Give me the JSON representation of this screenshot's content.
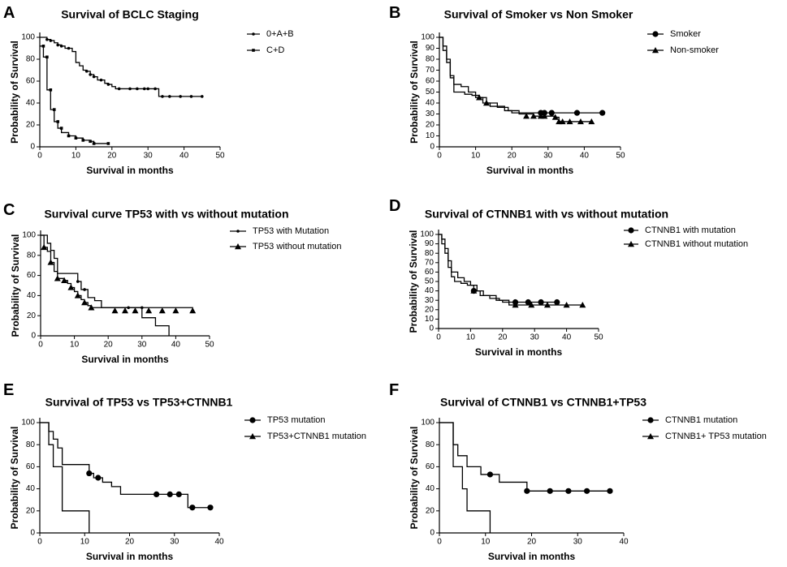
{
  "figure": {
    "panels": [
      {
        "letter": "A",
        "title": "Survival of BCLC Staging"
      },
      {
        "letter": "B",
        "title": "Survival of Smoker vs Non Smoker"
      },
      {
        "letter": "C",
        "title": "Survival curve TP53 with vs without mutation"
      },
      {
        "letter": "D",
        "title": "Survival of CTNNB1 with vs without mutation"
      },
      {
        "letter": "E",
        "title": "Survival of TP53 vs TP53+CTNNB1"
      },
      {
        "letter": "F",
        "title": "Survival of CTNNB1 vs CTNNB1+TP53"
      }
    ]
  },
  "chart_data": [
    {
      "type": "line",
      "step": true,
      "title": "Survival of BCLC Staging",
      "xlabel": "Survival in months",
      "ylabel": "Probability of Survival",
      "xlim": [
        0,
        50
      ],
      "ylim": [
        0,
        100
      ],
      "xticks": [
        0,
        10,
        20,
        30,
        40,
        50
      ],
      "yticks": [
        0,
        20,
        40,
        60,
        80,
        100
      ],
      "legend_position": "top-right",
      "series": [
        {
          "name": "0+A+B",
          "marker": "small-dot",
          "x": [
            0,
            2,
            3,
            4,
            5,
            6,
            7,
            9,
            10,
            11,
            12,
            13,
            14,
            15,
            16,
            18,
            19,
            20,
            21,
            33,
            45
          ],
          "y": [
            100,
            98,
            97,
            95,
            93,
            92,
            90,
            87,
            77,
            74,
            70,
            69,
            66,
            64,
            61,
            58,
            57,
            55,
            53,
            46,
            46
          ],
          "censored_x": [
            2,
            3,
            5,
            6,
            8,
            13,
            14,
            15,
            17,
            19,
            22,
            25,
            27,
            29,
            30,
            32,
            34,
            36,
            39,
            42,
            45
          ],
          "censored_y": [
            98,
            97,
            93,
            92,
            90,
            69,
            66,
            64,
            61,
            57,
            53,
            53,
            53,
            53,
            53,
            53,
            46,
            46,
            46,
            46,
            46
          ]
        },
        {
          "name": "C+D",
          "marker": "small-square",
          "x": [
            0,
            1,
            2,
            3,
            4,
            5,
            6,
            8,
            10,
            12,
            14,
            15,
            19
          ],
          "y": [
            92,
            82,
            52,
            34,
            23,
            17,
            13,
            10,
            8,
            6,
            5,
            3,
            3
          ],
          "censored_x": [
            1,
            2,
            3,
            4,
            5,
            6,
            8,
            10,
            12,
            14,
            15,
            19
          ],
          "censored_y": [
            92,
            82,
            52,
            34,
            23,
            17,
            10,
            8,
            6,
            5,
            3,
            3
          ]
        }
      ]
    },
    {
      "type": "line",
      "step": true,
      "title": "Survival of Smoker vs Non Smoker",
      "xlabel": "Survival in months",
      "ylabel": "Probability of Survival",
      "xlim": [
        0,
        50
      ],
      "ylim": [
        0,
        100
      ],
      "xticks": [
        0,
        10,
        20,
        30,
        40,
        50
      ],
      "yticks": [
        0,
        10,
        20,
        30,
        40,
        50,
        60,
        70,
        80,
        90,
        100
      ],
      "legend_position": "top-right",
      "series": [
        {
          "name": "Smoker",
          "marker": "circle",
          "x": [
            0,
            1,
            2,
            3,
            4,
            6,
            8,
            10,
            12,
            14,
            18,
            20,
            45
          ],
          "y": [
            100,
            92,
            80,
            65,
            57,
            55,
            50,
            45,
            40,
            37,
            33,
            31,
            31
          ],
          "censored_x": [
            28,
            29,
            31,
            38,
            45
          ],
          "censored_y": [
            31,
            31,
            31,
            31,
            31
          ]
        },
        {
          "name": "Non-smoker",
          "marker": "triangle",
          "x": [
            0,
            1,
            2,
            3,
            4,
            7,
            9,
            11,
            13,
            16,
            19,
            22,
            26,
            32,
            33,
            42
          ],
          "y": [
            100,
            88,
            77,
            63,
            50,
            48,
            47,
            45,
            40,
            36,
            33,
            30,
            28,
            27,
            23,
            23
          ],
          "censored_x": [
            11,
            13,
            24,
            26,
            28,
            29,
            32,
            33,
            34,
            36,
            39,
            42
          ],
          "censored_y": [
            45,
            40,
            28,
            28,
            28,
            28,
            27,
            23,
            23,
            23,
            23,
            23
          ]
        }
      ]
    },
    {
      "type": "line",
      "step": true,
      "title": "Survival curve TP53 with vs without mutation",
      "xlabel": "Survival in months",
      "ylabel": "Probability of Survival",
      "xlim": [
        0,
        50
      ],
      "ylim": [
        0,
        100
      ],
      "xticks": [
        0,
        10,
        20,
        30,
        40,
        50
      ],
      "yticks": [
        0,
        20,
        40,
        60,
        80,
        100
      ],
      "legend_position": "top-right",
      "series": [
        {
          "name": "TP53 with Mutation",
          "marker": "small-dot",
          "x": [
            0,
            2,
            3,
            4,
            5,
            11,
            12,
            14,
            16,
            18,
            30,
            34,
            38
          ],
          "y": [
            100,
            92,
            85,
            77,
            62,
            54,
            46,
            38,
            35,
            28,
            18,
            10,
            0
          ],
          "censored_x": [
            11,
            13,
            26,
            30
          ],
          "censored_y": [
            54,
            46,
            28,
            28
          ]
        },
        {
          "name": "TP53 without mutation",
          "marker": "triangle",
          "x": [
            0,
            1,
            2,
            3,
            4,
            5,
            7,
            8,
            9,
            10,
            11,
            12,
            13,
            14,
            15,
            45
          ],
          "y": [
            100,
            88,
            84,
            73,
            64,
            57,
            55,
            52,
            48,
            44,
            40,
            36,
            33,
            30,
            28,
            25
          ],
          "censored_x": [
            1,
            3,
            5,
            7,
            9,
            11,
            13,
            15,
            22,
            25,
            28,
            32,
            36,
            40,
            45
          ],
          "censored_y": [
            88,
            73,
            57,
            55,
            48,
            40,
            33,
            28,
            25,
            25,
            25,
            25,
            25,
            25,
            25
          ]
        }
      ]
    },
    {
      "type": "line",
      "step": true,
      "title": "Survival of CTNNB1 with vs without mutation",
      "xlabel": "Survival in months",
      "ylabel": "Probability of Survival",
      "xlim": [
        0,
        50
      ],
      "ylim": [
        0,
        100
      ],
      "xticks": [
        0,
        10,
        20,
        30,
        40,
        50
      ],
      "yticks": [
        0,
        10,
        20,
        30,
        40,
        50,
        60,
        70,
        80,
        90,
        100
      ],
      "legend_position": "top-right",
      "series": [
        {
          "name": "CTNNB1 with mutation",
          "marker": "circle",
          "x": [
            0,
            1,
            2,
            3,
            4,
            6,
            8,
            10,
            12,
            14,
            18,
            20,
            37
          ],
          "y": [
            100,
            95,
            85,
            72,
            60,
            54,
            50,
            46,
            40,
            35,
            30,
            28,
            28
          ],
          "censored_x": [
            11,
            24,
            28,
            32,
            37
          ],
          "censored_y": [
            40,
            28,
            28,
            28,
            28
          ]
        },
        {
          "name": "CTNNB1 without mutation",
          "marker": "triangle",
          "x": [
            0,
            1,
            2,
            3,
            4,
            5,
            7,
            9,
            11,
            13,
            16,
            19,
            22,
            45
          ],
          "y": [
            100,
            90,
            80,
            65,
            55,
            50,
            48,
            46,
            40,
            35,
            32,
            30,
            25,
            25
          ],
          "censored_x": [
            11,
            24,
            29,
            34,
            40,
            45
          ],
          "censored_y": [
            40,
            25,
            25,
            25,
            25,
            25
          ]
        }
      ]
    },
    {
      "type": "line",
      "step": true,
      "title": "Survival of TP53 vs TP53+CTNNB1",
      "xlabel": "Survival in months",
      "ylabel": "Probability of Survival",
      "xlim": [
        0,
        40
      ],
      "ylim": [
        0,
        100
      ],
      "xticks": [
        0,
        10,
        20,
        30,
        40
      ],
      "yticks": [
        0,
        20,
        40,
        60,
        80,
        100
      ],
      "legend_position": "top-right",
      "series": [
        {
          "name": "TP53 mutation",
          "marker": "circle",
          "x": [
            0,
            2,
            3,
            4,
            5,
            11,
            12,
            14,
            16,
            18,
            33,
            38
          ],
          "y": [
            100,
            92,
            85,
            77,
            62,
            54,
            50,
            46,
            42,
            35,
            23,
            23
          ],
          "censored_x": [
            11,
            13,
            26,
            29,
            31,
            34,
            38
          ],
          "censored_y": [
            54,
            50,
            35,
            35,
            35,
            23,
            23
          ]
        },
        {
          "name": "TP53+CTNNB1 mutation",
          "marker": "triangle",
          "x": [
            0,
            2,
            3,
            5,
            11
          ],
          "y": [
            100,
            80,
            60,
            20,
            0
          ],
          "censored_x": [],
          "censored_y": []
        }
      ]
    },
    {
      "type": "line",
      "step": true,
      "title": "Survival of CTNNB1 vs CTNNB1+TP53",
      "xlabel": "Survival in months",
      "ylabel": "Probability of Survival",
      "xlim": [
        0,
        40
      ],
      "ylim": [
        0,
        100
      ],
      "xticks": [
        0,
        10,
        20,
        30,
        40
      ],
      "yticks": [
        0,
        20,
        40,
        60,
        80,
        100
      ],
      "legend_position": "top-right",
      "series": [
        {
          "name": "CTNNB1 mutation",
          "marker": "circle",
          "x": [
            0,
            3,
            4,
            6,
            9,
            11,
            13,
            15,
            19,
            37
          ],
          "y": [
            100,
            80,
            70,
            60,
            53,
            53,
            46,
            46,
            38,
            38
          ],
          "censored_x": [
            11,
            19,
            24,
            28,
            32,
            37
          ],
          "censored_y": [
            53,
            38,
            38,
            38,
            38,
            38
          ]
        },
        {
          "name": "CTNNB1+ TP53 mutation",
          "marker": "triangle",
          "x": [
            0,
            3,
            5,
            6,
            11
          ],
          "y": [
            100,
            60,
            40,
            20,
            0
          ],
          "censored_x": [],
          "censored_y": []
        }
      ]
    }
  ]
}
